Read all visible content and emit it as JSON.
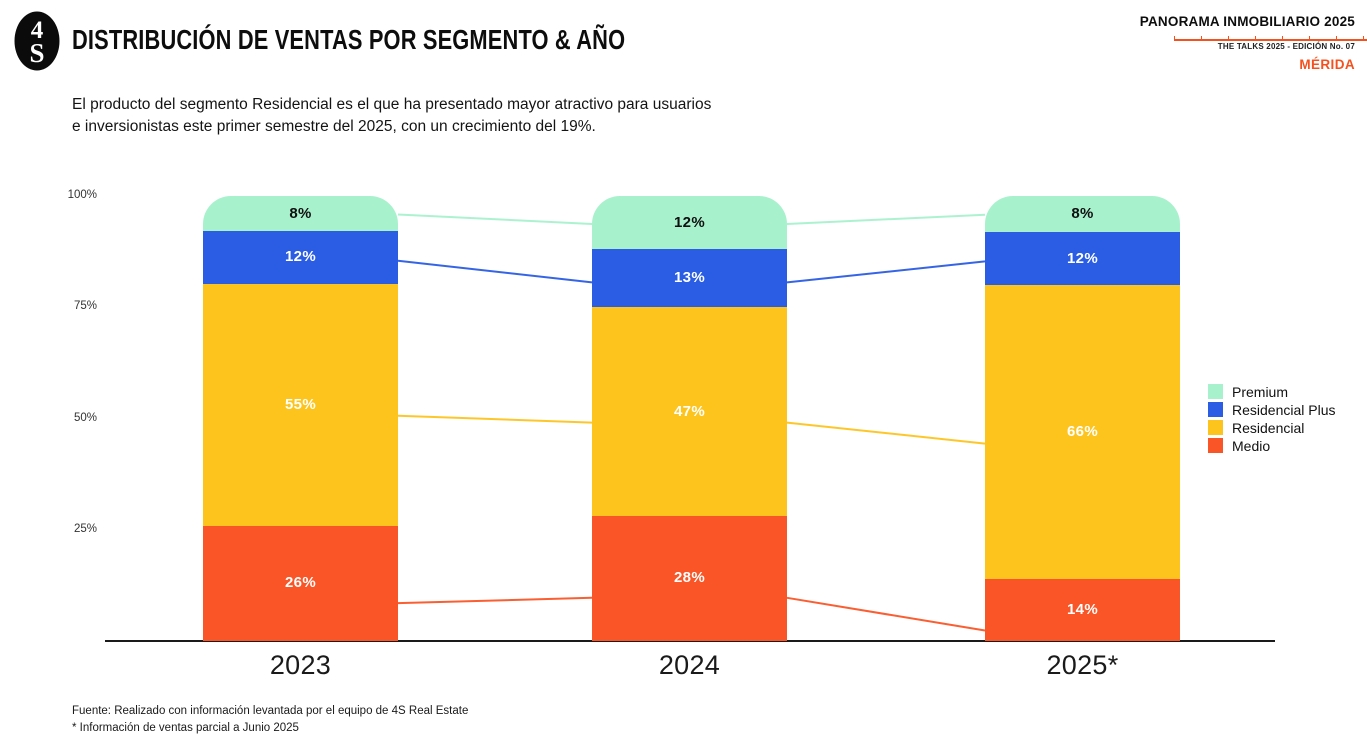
{
  "header": {
    "logo": {
      "top_glyph": "4",
      "bottom_glyph": "S"
    },
    "title": "DISTRIBUCIÓN DE VENTAS POR SEGMENTO & AÑO",
    "kicker": "PANORAMA INMOBILIARIO 2025",
    "edition": "THE TALKS 2025 - EDICIÓN No. 07",
    "city": "MÉRIDA"
  },
  "subtitle": "El producto del segmento Residencial es el que ha presentado mayor atractivo para usuarios e inversionistas este primer semestre del 2025, con un crecimiento del 19%.",
  "chart_data": {
    "type": "bar",
    "stacked": true,
    "categories": [
      "2023",
      "2024",
      "2025*"
    ],
    "series": [
      {
        "name": "Premium",
        "color": "#A8F1CD",
        "label_color": "#101010",
        "values": [
          8,
          12,
          8
        ]
      },
      {
        "name": "Residencial Plus",
        "color": "#2A5CE4",
        "label_color": "#ffffff",
        "values": [
          12,
          13,
          12
        ]
      },
      {
        "name": "Residencial",
        "color": "#FDC41D",
        "label_color": "#ffffff",
        "values": [
          55,
          47,
          66
        ]
      },
      {
        "name": "Medio",
        "color": "#FA5526",
        "label_color": "#ffffff",
        "values": [
          26,
          28,
          14
        ]
      }
    ],
    "value_suffix": "%",
    "ylim": [
      0,
      100
    ],
    "y_ticks": [
      {
        "value": 100,
        "label": "100%"
      },
      {
        "value": 75,
        "label": "75%"
      },
      {
        "value": 50,
        "label": "50%"
      },
      {
        "value": 25,
        "label": "25%"
      }
    ],
    "grid": false,
    "legend_position": "right",
    "connector_lines": true
  },
  "footer": {
    "source": "Fuente: Realizado con información levantada por el equipo de 4S Real Estate",
    "note": "* Información de ventas parcial a Junio 2025"
  },
  "colors": {
    "accent": "#F4511E",
    "axis": "#1a1a1a"
  }
}
